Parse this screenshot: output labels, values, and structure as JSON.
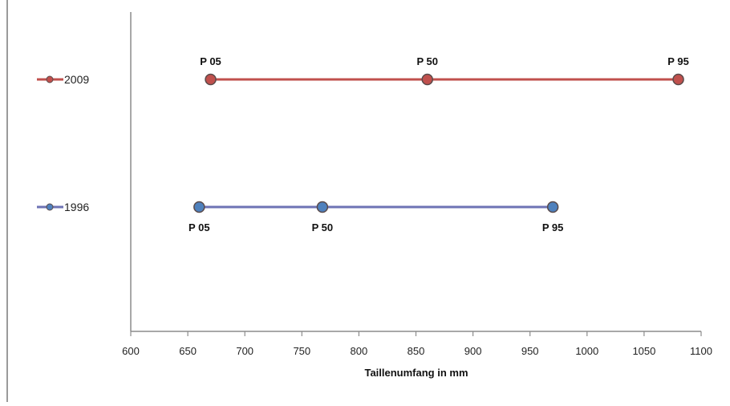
{
  "chart_data": {
    "type": "line",
    "title": "",
    "xlabel": "Taillenumfang in mm",
    "ylabel": "",
    "xlim": [
      600,
      1100
    ],
    "x_ticks": [
      600,
      650,
      700,
      750,
      800,
      850,
      900,
      950,
      1000,
      1050,
      1100
    ],
    "grid": false,
    "legend_position": "left",
    "series": [
      {
        "name": "2009",
        "color": "#c0504d",
        "marker_color": "#c0504d",
        "label_position": "above",
        "points": [
          {
            "label": "P 05",
            "x": 670
          },
          {
            "label": "P 50",
            "x": 860
          },
          {
            "label": "P 95",
            "x": 1080
          }
        ]
      },
      {
        "name": "1996",
        "color": "#6e73b5",
        "marker_color": "#4f81bd",
        "label_position": "below",
        "points": [
          {
            "label": "P 05",
            "x": 660
          },
          {
            "label": "P 50",
            "x": 768
          },
          {
            "label": "P 95",
            "x": 970
          }
        ]
      }
    ]
  }
}
